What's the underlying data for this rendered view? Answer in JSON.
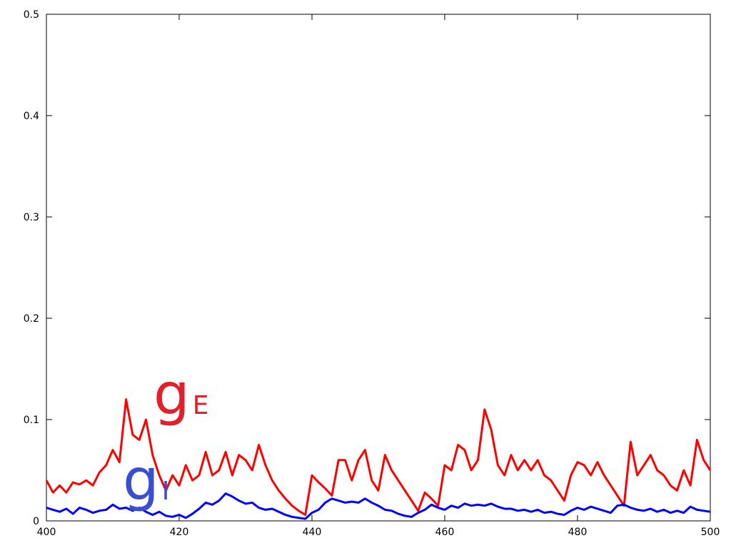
{
  "chart_data": {
    "type": "line",
    "x": [
      400,
      401,
      402,
      403,
      404,
      405,
      406,
      407,
      408,
      409,
      410,
      411,
      412,
      413,
      414,
      415,
      416,
      417,
      418,
      419,
      420,
      421,
      422,
      423,
      424,
      425,
      426,
      427,
      428,
      429,
      430,
      431,
      432,
      433,
      434,
      435,
      436,
      437,
      438,
      439,
      440,
      441,
      442,
      443,
      444,
      445,
      446,
      447,
      448,
      449,
      450,
      451,
      452,
      453,
      454,
      455,
      456,
      457,
      458,
      459,
      460,
      461,
      462,
      463,
      464,
      465,
      466,
      467,
      468,
      469,
      470,
      471,
      472,
      473,
      474,
      475,
      476,
      477,
      478,
      479,
      480,
      481,
      482,
      483,
      484,
      485,
      486,
      487,
      488,
      489,
      490,
      491,
      492,
      493,
      494,
      495,
      496,
      497,
      498,
      499,
      500
    ],
    "series": [
      {
        "color": "#ff0000",
        "values": [
          0.04,
          0.028,
          0.035,
          0.028,
          0.038,
          0.036,
          0.04,
          0.035,
          0.048,
          0.055,
          0.07,
          0.058,
          0.12,
          0.085,
          0.08,
          0.1,
          0.065,
          0.045,
          0.03,
          0.045,
          0.035,
          0.055,
          0.04,
          0.045,
          0.068,
          0.045,
          0.05,
          0.068,
          0.045,
          0.065,
          0.06,
          0.05,
          0.075,
          0.055,
          0.04,
          0.03,
          0.022,
          0.015,
          0.01,
          0.006,
          0.045,
          0.038,
          0.032,
          0.025,
          0.06,
          0.06,
          0.04,
          0.06,
          0.07,
          0.04,
          0.03,
          0.065,
          0.05,
          0.04,
          0.03,
          0.02,
          0.01,
          0.028,
          0.022,
          0.015,
          0.055,
          0.05,
          0.075,
          0.07,
          0.05,
          0.06,
          0.11,
          0.09,
          0.055,
          0.045,
          0.065,
          0.05,
          0.06,
          0.05,
          0.06,
          0.045,
          0.04,
          0.03,
          0.02,
          0.045,
          0.058,
          0.055,
          0.045,
          0.058,
          0.045,
          0.035,
          0.025,
          0.015,
          0.078,
          0.045,
          0.055,
          0.065,
          0.05,
          0.045,
          0.035,
          0.03,
          0.05,
          0.035,
          0.08,
          0.06,
          0.05
        ]
      },
      {
        "color": "#0000ff",
        "values": [
          0.013,
          0.011,
          0.009,
          0.012,
          0.007,
          0.013,
          0.011,
          0.008,
          0.01,
          0.011,
          0.016,
          0.012,
          0.013,
          0.01,
          0.013,
          0.009,
          0.006,
          0.009,
          0.005,
          0.004,
          0.006,
          0.003,
          0.007,
          0.012,
          0.018,
          0.016,
          0.02,
          0.027,
          0.024,
          0.02,
          0.017,
          0.018,
          0.013,
          0.011,
          0.012,
          0.009,
          0.006,
          0.004,
          0.003,
          0.002,
          0.008,
          0.011,
          0.018,
          0.022,
          0.02,
          0.018,
          0.019,
          0.018,
          0.022,
          0.018,
          0.015,
          0.011,
          0.01,
          0.007,
          0.005,
          0.004,
          0.008,
          0.011,
          0.016,
          0.013,
          0.011,
          0.015,
          0.013,
          0.017,
          0.015,
          0.016,
          0.015,
          0.017,
          0.014,
          0.012,
          0.012,
          0.01,
          0.011,
          0.009,
          0.011,
          0.008,
          0.009,
          0.007,
          0.006,
          0.01,
          0.013,
          0.011,
          0.014,
          0.012,
          0.01,
          0.008,
          0.015,
          0.016,
          0.013,
          0.011,
          0.01,
          0.012,
          0.009,
          0.011,
          0.008,
          0.01,
          0.008,
          0.014,
          0.011,
          0.01,
          0.009
        ]
      }
    ],
    "annotations": [
      {
        "text": "g",
        "subscript": "E",
        "color": "#e0202a"
      },
      {
        "text": "g",
        "subscript": "I",
        "color": "#3a4fcf"
      }
    ],
    "xlim": [
      400,
      500
    ],
    "xticks": [
      400,
      420,
      440,
      460,
      480,
      500
    ],
    "ylim": [
      0,
      0.5
    ],
    "yticks": [
      0,
      0.1,
      0.2,
      0.3,
      0.4,
      0.5
    ]
  }
}
